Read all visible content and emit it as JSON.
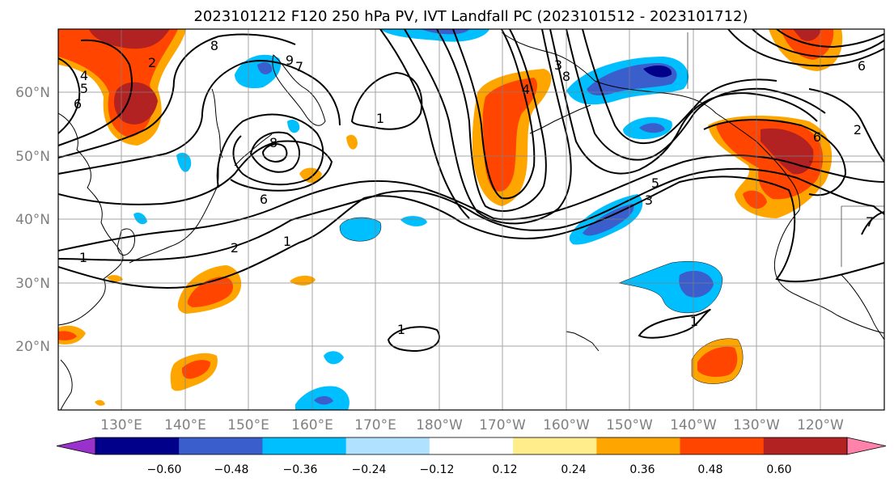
{
  "title": "2023101212 F120 250 hPa PV, IVT Landfall PC (2023101512 - 2023101712)",
  "map": {
    "lat_labels": [
      "60°N",
      "50°N",
      "40°N",
      "30°N",
      "20°N"
    ],
    "lon_labels": [
      "130°E",
      "140°E",
      "150°E",
      "160°E",
      "170°E",
      "180°W",
      "170°W",
      "160°W",
      "150°W",
      "140°W",
      "130°W",
      "120°W"
    ],
    "contour_labels": [
      "1",
      "1",
      "1",
      "1",
      "1",
      "2",
      "2",
      "2",
      "3",
      "3",
      "4",
      "4",
      "5",
      "5",
      "6",
      "6",
      "6",
      "7",
      "8",
      "8",
      "8",
      "9",
      "6",
      "7"
    ]
  },
  "colorbar": {
    "ticks": [
      "−0.60",
      "−0.48",
      "−0.36",
      "−0.24",
      "−0.12",
      "0.12",
      "0.24",
      "0.36",
      "0.48",
      "0.60"
    ],
    "colors": [
      "#9932cc",
      "#00008b",
      "#3a5fcd",
      "#00bfff",
      "#b0e2ff",
      "#ffffff",
      "#ffec8b",
      "#ffa500",
      "#ff4500",
      "#b22222",
      "#ff82ab"
    ]
  }
}
